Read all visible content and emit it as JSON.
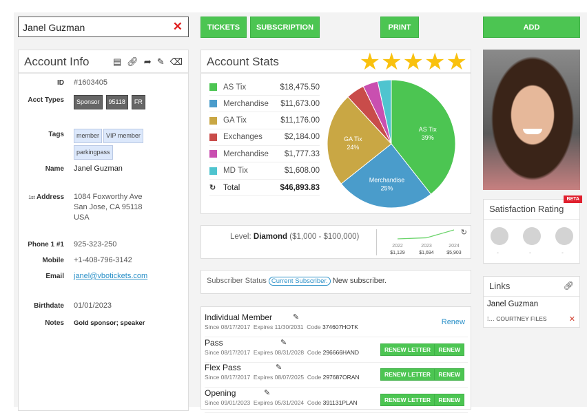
{
  "search": {
    "value": "Janel Guzman",
    "clear_icon": "close-icon"
  },
  "toolbar": {
    "tickets": "TICKETS",
    "subscription": "SUBSCRIPTION",
    "print": "PRINT",
    "add": "ADD",
    "accent": "#4cc552"
  },
  "account_info": {
    "title": "Account Info",
    "icons": [
      "contact-book-icon",
      "link-icon",
      "share-icon",
      "pencil-icon",
      "eraser-icon"
    ],
    "id_label": "ID",
    "id": "#1603405",
    "acct_types_label": "Acct Types",
    "acct_types": [
      "Sponsor",
      "95118",
      "FR"
    ],
    "tags_label": "Tags",
    "tags": [
      "member",
      "VIP member",
      "parkingpass"
    ],
    "name_label": "Name",
    "name": "Janel Guzman",
    "address_prefix": "1st",
    "address_label": "Address",
    "address": [
      "1084 Foxworthy Ave",
      "San Jose, CA 95118",
      "USA"
    ],
    "phone_label": "Phone 1 #1",
    "phone": "925-323-250",
    "mobile_label": "Mobile",
    "mobile": "+1-408-796-3142",
    "email_label": "Email",
    "email": "janel@vbotickets.com",
    "birthdate_label": "Birthdate",
    "birthdate": "01/01/2023",
    "notes_label": "Notes",
    "notes": "Gold sponsor; speaker"
  },
  "account_stats": {
    "title": "Account Stats",
    "stars": 5,
    "star_color": "#f9c10e",
    "total_label": "Total",
    "total": "$46,893.83"
  },
  "chart_data": {
    "type": "pie",
    "slices": [
      {
        "name": "AS Tix",
        "amount": "$18,475.50",
        "value": 18475.5,
        "percent_label": "39%",
        "color": "#4cc552"
      },
      {
        "name": "Merchandise",
        "amount": "$11,673.00",
        "value": 11673.0,
        "percent_label": "25%",
        "color": "#4a9ccb"
      },
      {
        "name": "GA Tix",
        "amount": "$11,176.00",
        "value": 11176.0,
        "percent_label": "24%",
        "color": "#c9a744"
      },
      {
        "name": "Exchanges",
        "amount": "$2,184.00",
        "value": 2184.0,
        "percent_label": "",
        "color": "#c94c4a"
      },
      {
        "name": "Merchandise",
        "amount": "$1,777.33",
        "value": 1777.33,
        "percent_label": "",
        "color": "#c94fb0"
      },
      {
        "name": "MD Tix",
        "amount": "$1,608.00",
        "value": 1608.0,
        "percent_label": "",
        "color": "#4fc4cf"
      }
    ]
  },
  "level": {
    "prefix": "Level:",
    "name": "Diamond",
    "range": "($1,000 - $100,000)",
    "trend": {
      "type": "line",
      "x": [
        "2022",
        "2023",
        "2024"
      ],
      "labels": [
        "$1,129",
        "$1,694",
        "$5,903"
      ],
      "values": [
        1129,
        1694,
        5903
      ]
    }
  },
  "subscriber": {
    "label": "Subscriber Status",
    "badge": "Current Subscriber.",
    "text": "New subscriber."
  },
  "memberships": [
    {
      "name": "Individual Member",
      "since": "Since 08/17/2017",
      "expires": "Expires 11/30/2031",
      "code_label": "Code",
      "code": "374607HOTK",
      "link": "Renew"
    },
    {
      "name": "Pass",
      "since": "Since 08/17/2017",
      "expires": "Expires 08/31/2028",
      "code_label": "Code",
      "code": "296666HAND",
      "letter": "RENEW LETTER",
      "renew": "RENEW"
    },
    {
      "name": "Flex Pass",
      "since": "Since 08/17/2017",
      "expires": "Expires 08/07/2025",
      "code_label": "Code",
      "code": "297687ORAN",
      "letter": "RENEW LETTER",
      "renew": "RENEW"
    },
    {
      "name": "Opening",
      "since": "Since 09/01/2023",
      "expires": "Expires 05/31/2024",
      "code_label": "Code",
      "code": "391131PLAN",
      "letter": "RENEW LETTER",
      "renew": "RENEW"
    }
  ],
  "satisfaction": {
    "title": "Satisfaction Rating",
    "beta": "BETA",
    "scores": [
      "-",
      "-",
      "-"
    ]
  },
  "links": {
    "title": "Links",
    "name": "Janel Guzman",
    "item": "COURTNEY FILES"
  }
}
